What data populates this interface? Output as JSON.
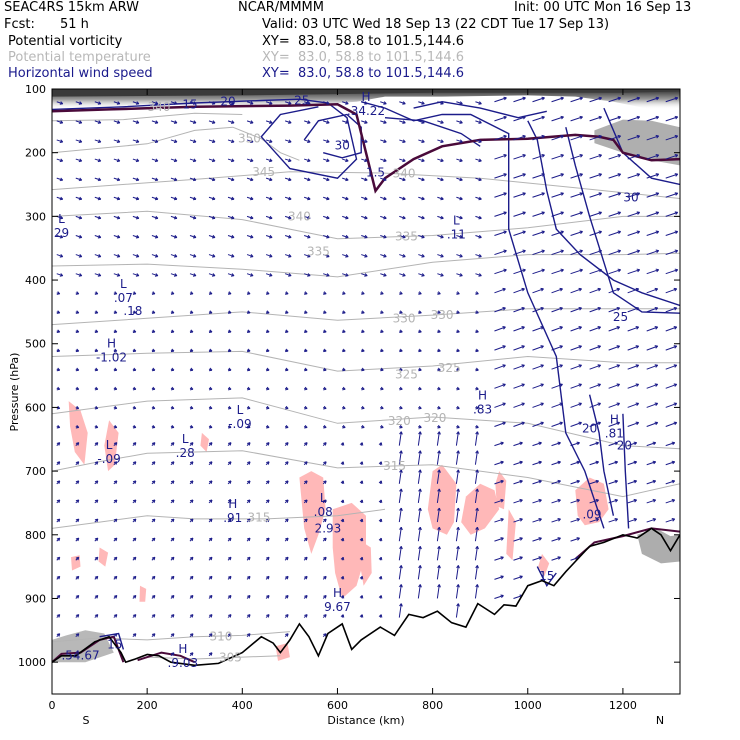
{
  "header": {
    "model": "SEAC4RS 15km ARW",
    "org": "NCAR/MMMM",
    "init": "Init: 00 UTC Mon 16 Sep 13",
    "fcst_label": "Fcst:",
    "fcst_value": "51 h",
    "valid": "Valid: 03 UTC Wed 18 Sep 13 (22 CDT Tue 17 Sep 13)",
    "fields": [
      {
        "name": "Potential vorticity",
        "xy": "XY=  83.0, 58.8 to 101.5,144.6",
        "color": "#000000"
      },
      {
        "name": "Potential temperature",
        "xy": "XY=  83.0, 58.8 to 101.5,144.6",
        "color": "#b8b8b8"
      },
      {
        "name": "Horizontal wind speed",
        "xy": "XY=  83.0, 58.8 to 101.5,144.6",
        "color": "#1a1a8c"
      }
    ]
  },
  "chart_data": {
    "type": "cross-section",
    "xlabel": "Distance (km)",
    "ylabel": "Pressure (hPa)",
    "xlim": [
      0,
      1320
    ],
    "ylim": [
      1050,
      100
    ],
    "x_ticks": [
      0,
      200,
      400,
      600,
      800,
      1000,
      1200
    ],
    "y_ticks": [
      100,
      200,
      300,
      400,
      500,
      600,
      700,
      800,
      900,
      1000
    ],
    "x_end_labels": {
      "left": "S",
      "right": "N"
    },
    "colors": {
      "theta": "#b4b4b4",
      "wind": "#1c1c8a",
      "pv": "#ffb8b8",
      "pv_line": "#4a0a3a",
      "terrain": "#000000"
    },
    "theta_labels": [
      {
        "text": "340",
        "x": 225,
        "p": 128
      },
      {
        "text": "350",
        "x": 415,
        "p": 178
      },
      {
        "text": "345",
        "x": 445,
        "p": 230
      },
      {
        "text": "340",
        "x": 520,
        "p": 300
      },
      {
        "text": "335",
        "x": 560,
        "p": 355
      },
      {
        "text": "335",
        "x": 745,
        "p": 332
      },
      {
        "text": "330",
        "x": 740,
        "p": 460
      },
      {
        "text": "330",
        "x": 820,
        "p": 455
      },
      {
        "text": "325",
        "x": 745,
        "p": 548
      },
      {
        "text": "325",
        "x": 835,
        "p": 538
      },
      {
        "text": "320",
        "x": 730,
        "p": 621
      },
      {
        "text": "320",
        "x": 805,
        "p": 617
      },
      {
        "text": "315",
        "x": 720,
        "p": 692
      },
      {
        "text": "315",
        "x": 435,
        "p": 773
      },
      {
        "text": "310",
        "x": 355,
        "p": 960
      },
      {
        "text": "305",
        "x": 375,
        "p": 993
      },
      {
        "text": "340",
        "x": 740,
        "p": 233
      }
    ],
    "wind_labels": [
      {
        "text": "15",
        "x": 290,
        "p": 124
      },
      {
        "text": "20",
        "x": 370,
        "p": 120
      },
      {
        "text": "25",
        "x": 525,
        "p": 118
      },
      {
        "text": "30",
        "x": 610,
        "p": 189
      },
      {
        "text": "30",
        "x": 1217,
        "p": 270
      },
      {
        "text": "25",
        "x": 1195,
        "p": 458
      },
      {
        "text": "20",
        "x": 1130,
        "p": 633
      },
      {
        "text": "20",
        "x": 1203,
        "p": 660
      },
      {
        "text": "15",
        "x": 1040,
        "p": 865
      },
      {
        "text": "15",
        "x": 132,
        "p": 972
      }
    ],
    "extrema": [
      {
        "type": "L",
        "value": "29",
        "x": 20,
        "p": 320
      },
      {
        "type": "L",
        "value": ".07",
        "x": 150,
        "p": 422
      },
      {
        "type": "",
        "value": ".18",
        "x": 170,
        "p": 442
      },
      {
        "type": "H",
        "value": "-1.02",
        "x": 125,
        "p": 515
      },
      {
        "type": "L",
        "value": "-.09",
        "x": 395,
        "p": 620
      },
      {
        "type": "L",
        "value": ".28",
        "x": 280,
        "p": 665
      },
      {
        "type": "L",
        "value": "-.09",
        "x": 120,
        "p": 675
      },
      {
        "type": "H",
        "value": ".91",
        "x": 380,
        "p": 767
      },
      {
        "type": "L",
        "value": ".08",
        "x": 570,
        "p": 758
      },
      {
        "type": "",
        "value": "2.93",
        "x": 580,
        "p": 784
      },
      {
        "type": "H",
        "value": "9.67",
        "x": 600,
        "p": 907
      },
      {
        "type": "H",
        "value": ".83",
        "x": 905,
        "p": 597
      },
      {
        "type": "L",
        "value": ".11",
        "x": 850,
        "p": 322
      },
      {
        "type": "H",
        "value": ".34.22",
        "x": 660,
        "p": 128
      },
      {
        "type": "H",
        "value": ".81",
        "x": 1182,
        "p": 635
      },
      {
        "type": "",
        "value": ".09",
        "x": 1135,
        "p": 762
      },
      {
        "type": "H",
        "value": ".9.03",
        "x": 275,
        "p": 995
      },
      {
        "type": "",
        "value": ".54.67",
        "x": 60,
        "p": 983
      },
      {
        "type": "",
        "value": "1.5",
        "x": 680,
        "p": 225
      }
    ],
    "terrain": [
      [
        0,
        1000
      ],
      [
        20,
        990
      ],
      [
        50,
        990
      ],
      [
        90,
        968
      ],
      [
        120,
        960
      ],
      [
        145,
        985
      ],
      [
        155,
        1000
      ],
      [
        175,
        995
      ],
      [
        200,
        988
      ],
      [
        225,
        990
      ],
      [
        250,
        1000
      ],
      [
        300,
        1005
      ],
      [
        350,
        1002
      ],
      [
        400,
        985
      ],
      [
        440,
        960
      ],
      [
        465,
        970
      ],
      [
        480,
        985
      ],
      [
        500,
        965
      ],
      [
        520,
        940
      ],
      [
        540,
        960
      ],
      [
        560,
        990
      ],
      [
        580,
        955
      ],
      [
        610,
        940
      ],
      [
        630,
        980
      ],
      [
        650,
        965
      ],
      [
        690,
        945
      ],
      [
        720,
        958
      ],
      [
        750,
        925
      ],
      [
        780,
        930
      ],
      [
        810,
        920
      ],
      [
        840,
        938
      ],
      [
        870,
        945
      ],
      [
        895,
        908
      ],
      [
        930,
        925
      ],
      [
        950,
        910
      ],
      [
        975,
        912
      ],
      [
        1000,
        880
      ],
      [
        1030,
        872
      ],
      [
        1055,
        880
      ],
      [
        1080,
        858
      ],
      [
        1105,
        838
      ],
      [
        1130,
        818
      ],
      [
        1160,
        812
      ],
      [
        1200,
        800
      ],
      [
        1230,
        805
      ],
      [
        1260,
        790
      ],
      [
        1280,
        800
      ],
      [
        1300,
        825
      ],
      [
        1320,
        800
      ]
    ]
  }
}
